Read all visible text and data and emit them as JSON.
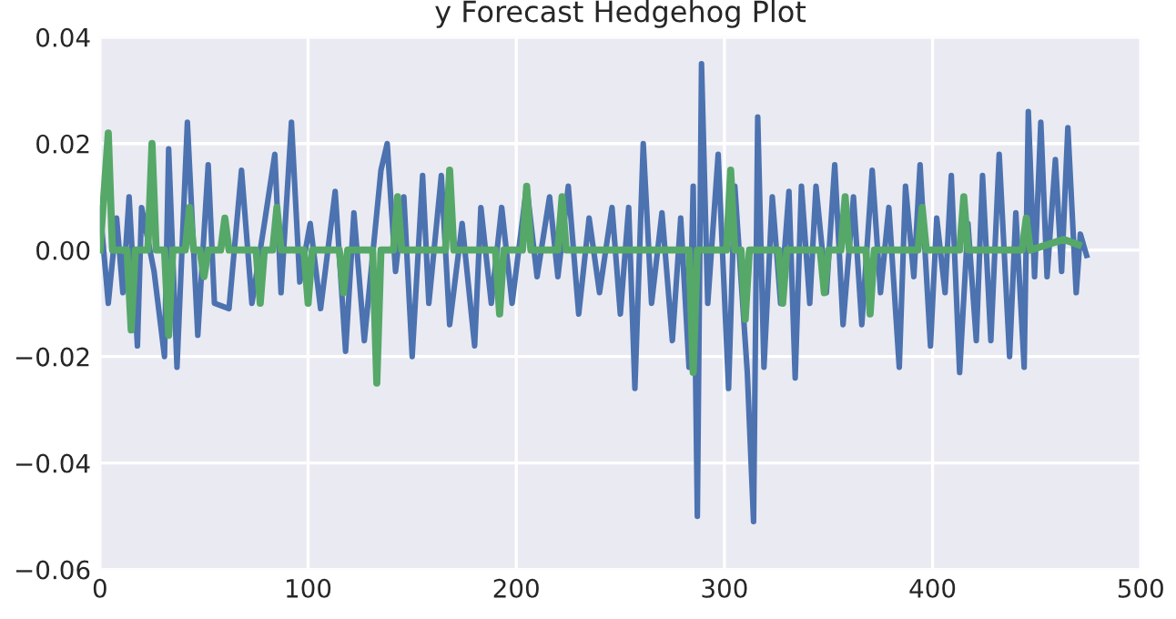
{
  "chart_data": {
    "type": "line",
    "title": "y Forecast Hedgehog Plot",
    "xlim": [
      0,
      500
    ],
    "ylim": [
      -0.06,
      0.04
    ],
    "xticks": [
      0,
      100,
      200,
      300,
      400,
      500
    ],
    "yticks": [
      {
        "value": -0.06,
        "label": "−0.06"
      },
      {
        "value": -0.04,
        "label": "−0.04"
      },
      {
        "value": -0.02,
        "label": "−0.02"
      },
      {
        "value": 0,
        "label": "0.00"
      },
      {
        "value": 0.02,
        "label": "0.02"
      },
      {
        "value": 0.04,
        "label": "0.04"
      }
    ],
    "grid": true,
    "line_style": "solid",
    "marker": "none",
    "series": [
      {
        "color": "#4c72b0",
        "x": [
          0,
          4,
          8,
          11,
          14,
          18,
          20,
          26,
          31,
          33,
          37,
          42,
          47,
          52,
          55,
          62,
          68,
          73,
          79,
          84,
          87,
          92,
          96,
          101,
          106,
          113,
          118,
          122,
          127,
          135,
          138,
          142,
          146,
          150,
          155,
          158,
          164,
          168,
          174,
          180,
          183,
          188,
          193,
          198,
          205,
          210,
          216,
          220,
          225,
          230,
          235,
          240,
          246,
          250,
          254,
          257,
          261,
          265,
          270,
          275,
          279,
          283,
          285,
          287,
          289,
          292,
          297,
          302,
          305,
          311,
          314,
          316,
          319,
          323,
          327,
          331,
          334,
          337,
          341,
          344,
          349,
          353,
          357,
          362,
          366,
          371,
          375,
          379,
          384,
          387,
          391,
          394,
          399,
          402,
          406,
          409,
          413,
          417,
          421,
          424,
          428,
          432,
          437,
          440,
          444,
          446,
          449,
          452,
          455,
          459,
          462,
          465,
          469,
          471,
          474
        ],
        "values": [
          0.008,
          -0.01,
          0.006,
          -0.008,
          0.01,
          -0.018,
          0.008,
          -0.004,
          -0.02,
          0.019,
          -0.022,
          0.024,
          -0.016,
          0.016,
          -0.01,
          -0.011,
          0.015,
          -0.01,
          0.005,
          0.018,
          -0.008,
          0.024,
          -0.006,
          0.005,
          -0.011,
          0.011,
          -0.019,
          0.007,
          -0.017,
          0.015,
          0.02,
          -0.004,
          0.01,
          -0.02,
          0.014,
          -0.01,
          0.014,
          -0.014,
          0.005,
          -0.018,
          0.008,
          -0.01,
          0.008,
          -0.01,
          0.012,
          -0.005,
          0.01,
          -0.005,
          0.012,
          -0.012,
          0.006,
          -0.008,
          0.008,
          -0.012,
          0.008,
          -0.026,
          0.02,
          -0.01,
          0.007,
          -0.017,
          0.006,
          -0.022,
          0.012,
          -0.05,
          0.035,
          -0.01,
          0.018,
          -0.026,
          0.012,
          -0.023,
          -0.051,
          0.025,
          -0.022,
          0.01,
          -0.01,
          0.011,
          -0.024,
          0.012,
          -0.01,
          0.012,
          -0.008,
          0.016,
          -0.014,
          0.01,
          -0.014,
          0.015,
          -0.008,
          0.008,
          -0.022,
          0.012,
          -0.005,
          0.016,
          -0.018,
          0.006,
          -0.008,
          0.014,
          -0.023,
          0.005,
          -0.017,
          0.014,
          -0.017,
          0.018,
          -0.02,
          0.007,
          -0.022,
          0.026,
          -0.005,
          0.024,
          -0.005,
          0.017,
          -0.004,
          0.023,
          -0.008,
          0.003,
          -0.001
        ]
      },
      {
        "color": "#55a868",
        "x": [
          0,
          4,
          6,
          13,
          15,
          17,
          23,
          25,
          27,
          31,
          33,
          35,
          41,
          43,
          45,
          48,
          50,
          52,
          58,
          60,
          62,
          75,
          77,
          79,
          83,
          85,
          87,
          98,
          100,
          102,
          115,
          117,
          119,
          131,
          133,
          135,
          141,
          143,
          145,
          166,
          168,
          170,
          190,
          192,
          194,
          203,
          205,
          207,
          220,
          222,
          224,
          283,
          285,
          287,
          301,
          303,
          305,
          308,
          310,
          312,
          326,
          328,
          330,
          346,
          348,
          350,
          356,
          358,
          360,
          368,
          370,
          372,
          393,
          395,
          397,
          413,
          415,
          417,
          443,
          445,
          447,
          463,
          470
        ],
        "values": [
          0,
          0.022,
          0,
          0,
          -0.015,
          0,
          0,
          0.02,
          0,
          0,
          -0.016,
          0,
          0,
          0.008,
          0,
          0,
          -0.005,
          0,
          0,
          0.006,
          0,
          0,
          -0.01,
          0,
          0,
          0.008,
          0,
          0,
          -0.01,
          0,
          0,
          -0.008,
          0,
          0,
          -0.025,
          0,
          0,
          0.01,
          0,
          0,
          0.015,
          0,
          0,
          -0.012,
          0,
          0,
          0.012,
          0,
          0,
          0.01,
          0,
          0,
          -0.023,
          0,
          0,
          0.015,
          0,
          0,
          -0.013,
          0,
          0,
          -0.01,
          0,
          0,
          -0.008,
          0,
          0,
          0.01,
          0,
          0,
          -0.012,
          0,
          0,
          0.008,
          0,
          0,
          0.01,
          0,
          0,
          0.006,
          0,
          0.002,
          0.001
        ]
      }
    ]
  }
}
